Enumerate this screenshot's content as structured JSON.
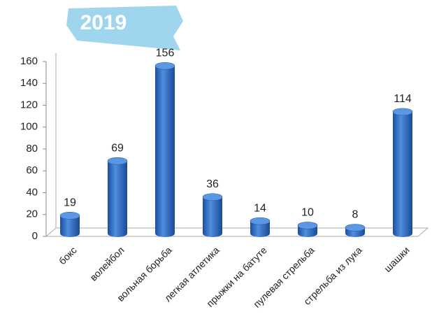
{
  "chart_data": {
    "type": "bar",
    "title": "2019",
    "categories": [
      "бокс",
      "волейбол",
      "вольная борьба",
      "легкая атлетика",
      "прыжки на батуте",
      "пулевая стрельба",
      "стрельба из лука",
      "шашки"
    ],
    "values": [
      19,
      69,
      156,
      36,
      14,
      10,
      8,
      114
    ],
    "color": "#2f6fc8",
    "ylim": [
      0,
      160
    ],
    "yticks": [
      0,
      20,
      40,
      60,
      80,
      100,
      120,
      140,
      160
    ],
    "grid": false
  }
}
